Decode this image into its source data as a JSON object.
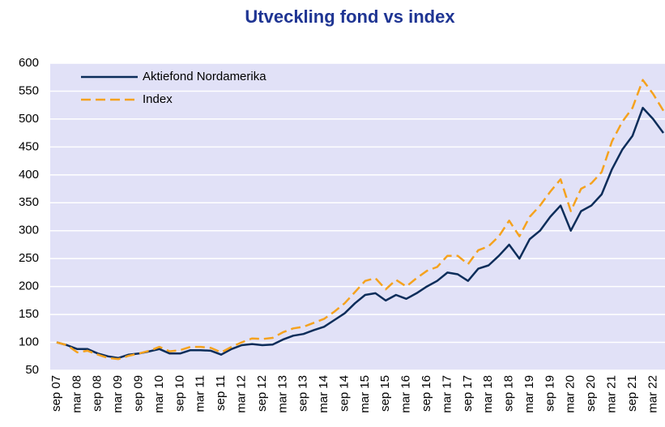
{
  "chart_data": {
    "type": "line",
    "title": "Utveckling fond vs index",
    "categories": [
      "sep 07",
      null,
      "mar 08",
      null,
      "sep 08",
      null,
      "mar 09",
      null,
      "sep 09",
      null,
      "mar 10",
      null,
      "sep 10",
      null,
      "mar 11",
      null,
      "sep 11",
      null,
      "mar 12",
      null,
      "sep 12",
      null,
      "mar 13",
      null,
      "sep 13",
      null,
      "mar 14",
      null,
      "sep 14",
      null,
      "mar 15",
      null,
      "sep 15",
      null,
      "mar 16",
      null,
      "sep 16",
      null,
      "mar 17",
      null,
      "sep 17",
      null,
      "mar 18",
      null,
      "sep 18",
      null,
      "mar 19",
      null,
      "sep 19",
      null,
      "mar 20",
      null,
      "sep 20",
      null,
      "mar 21",
      null,
      "sep 21",
      null,
      "mar 22",
      null
    ],
    "series": [
      {
        "name": "Aktiefond Nordamerika",
        "color": "#0c2d5a",
        "dashed": false,
        "values": [
          100,
          95,
          88,
          88,
          80,
          75,
          72,
          78,
          80,
          84,
          88,
          80,
          80,
          86,
          86,
          85,
          78,
          88,
          95,
          97,
          95,
          96,
          105,
          112,
          115,
          122,
          128,
          140,
          152,
          170,
          185,
          188,
          175,
          185,
          178,
          188,
          200,
          210,
          225,
          222,
          210,
          232,
          238,
          255,
          275,
          250,
          285,
          300,
          325,
          345,
          300,
          335,
          345,
          365,
          410,
          445,
          470,
          520,
          500,
          475
        ]
      },
      {
        "name": "Index",
        "color": "#f5a21e",
        "dashed": true,
        "values": [
          100,
          95,
          82,
          85,
          78,
          72,
          70,
          76,
          80,
          85,
          92,
          84,
          86,
          92,
          92,
          90,
          82,
          92,
          100,
          107,
          106,
          108,
          118,
          125,
          128,
          135,
          142,
          155,
          170,
          190,
          210,
          215,
          195,
          212,
          200,
          215,
          228,
          235,
          255,
          255,
          240,
          265,
          272,
          290,
          318,
          290,
          325,
          345,
          370,
          392,
          335,
          375,
          385,
          405,
          460,
          495,
          520,
          570,
          545,
          515
        ]
      }
    ],
    "ylim": [
      50,
      600
    ],
    "yticks": [
      50,
      100,
      150,
      200,
      250,
      300,
      350,
      400,
      450,
      500,
      550,
      600
    ],
    "grid": true,
    "legend": "top-left"
  }
}
